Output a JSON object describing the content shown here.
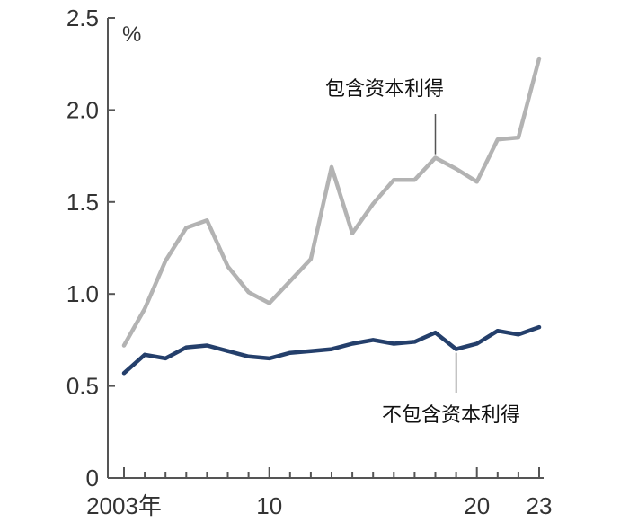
{
  "chart_data": {
    "type": "line",
    "x": [
      2003,
      2004,
      2005,
      2006,
      2007,
      2008,
      2009,
      2010,
      2011,
      2012,
      2013,
      2014,
      2015,
      2016,
      2017,
      2018,
      2019,
      2020,
      2021,
      2022,
      2023
    ],
    "series": [
      {
        "name": "包含资本利得",
        "color": "#b3b3b3",
        "values": [
          0.72,
          0.92,
          1.18,
          1.36,
          1.4,
          1.15,
          1.01,
          0.95,
          1.07,
          1.19,
          1.69,
          1.33,
          1.49,
          1.62,
          1.62,
          1.74,
          1.68,
          1.61,
          1.84,
          1.85,
          2.28
        ]
      },
      {
        "name": "不包含资本利得",
        "color": "#243f6b",
        "values": [
          0.57,
          0.67,
          0.65,
          0.71,
          0.72,
          0.69,
          0.66,
          0.65,
          0.68,
          0.69,
          0.7,
          0.73,
          0.75,
          0.73,
          0.74,
          0.79,
          0.7,
          0.73,
          0.8,
          0.78,
          0.82
        ]
      }
    ],
    "y_unit": "%",
    "ylim": [
      0,
      2.5
    ],
    "y_ticks": [
      0,
      0.5,
      1.0,
      1.5,
      2.0,
      2.5
    ],
    "y_tick_labels": [
      "0",
      "0.5",
      "1.0",
      "1.5",
      "2.0",
      "2.5"
    ],
    "x_ticks": [
      2003,
      2010,
      2020,
      2023
    ],
    "x_tick_labels": [
      "2003年",
      "10",
      "20",
      "23"
    ],
    "grid": false,
    "labels": [
      {
        "series": 0,
        "text": "包含资本利得",
        "at_x": 2018
      },
      {
        "series": 1,
        "text": "不包含资本利得",
        "at_x": 2019
      }
    ]
  }
}
